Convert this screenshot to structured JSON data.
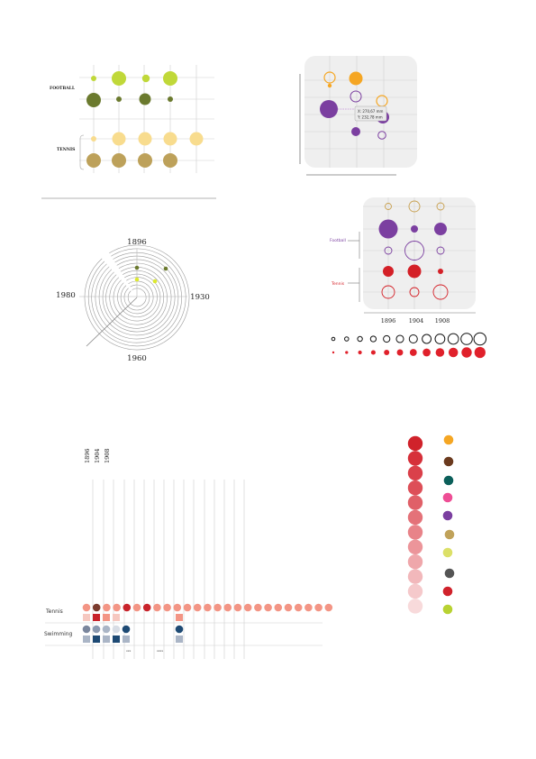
{
  "panel_a": {
    "label_top": "FOOTBALL",
    "label_bottom": "TENNIS",
    "colors": {
      "lime": "#c0d839",
      "olive": "#6b7a2e",
      "cream": "#f8dc8e",
      "tan": "#bda15a"
    }
  },
  "panel_b": {
    "tooltip_x": "X: 270,67 mm",
    "tooltip_y": "Y: 232,78 mm",
    "colors": {
      "orange": "#f5a623",
      "purple": "#7b3fa0",
      "panel_bg": "#efefef"
    }
  },
  "radial": {
    "label_top": "1896",
    "label_left": "1980",
    "label_right": "1930",
    "label_bottom": "1960"
  },
  "panel_c": {
    "legend_football": "Football",
    "legend_tennis": "Tennis",
    "x_labels": [
      "1896",
      "1904",
      "1908"
    ],
    "colors": {
      "gold": "#c8a04f",
      "purple": "#7b3fa0",
      "red": "#d42027"
    }
  },
  "timeline": {
    "years": [
      "1896",
      "1904",
      "1908"
    ],
    "row_labels": [
      "Tennis",
      "Swimming"
    ],
    "footnotes": [
      "xxx",
      "xxxx"
    ],
    "colors": {
      "salmon": "#f39585",
      "dark_red": "#c8232b",
      "brown": "#7b3b2e",
      "navy": "#1e4a74",
      "slate": "#8b99b0"
    }
  },
  "palette": {
    "reds": [
      "#d0222b",
      "#d6303a",
      "#da404a",
      "#dd4f58",
      "#e06068",
      "#e47279",
      "#e88389",
      "#ec959a",
      "#efa7ab",
      "#f2b8bb",
      "#f5c9cb",
      "#f8dadb"
    ],
    "swatches": [
      "#f5a623",
      "#6b3a1e",
      "#0b5f5a",
      "#ee4e95",
      "#7b3fa0",
      "#c0a25a",
      "#dce068",
      "#555555",
      "#d0222b",
      "#b8d232"
    ]
  }
}
